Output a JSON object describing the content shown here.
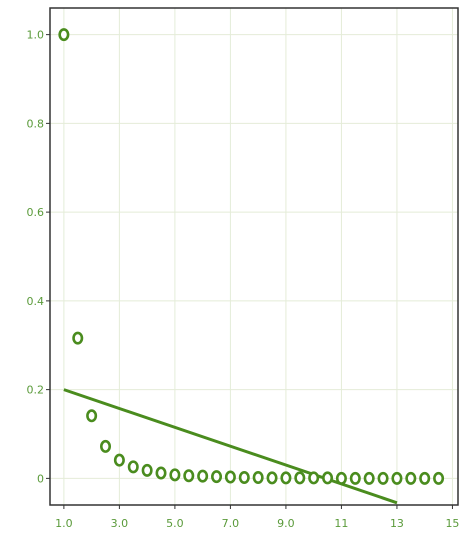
{
  "chart_data": {
    "type": "scatter",
    "title": "",
    "xlabel": "",
    "ylabel": "",
    "xlim": [
      0.5,
      15.2
    ],
    "ylim": [
      -0.06,
      1.06
    ],
    "grid": true,
    "x_ticks": [
      {
        "value": 1,
        "label": "1.0"
      },
      {
        "value": 3,
        "label": "3.0"
      },
      {
        "value": 5,
        "label": "5.0"
      },
      {
        "value": 7,
        "label": "7.0"
      },
      {
        "value": 9,
        "label": "9.0"
      },
      {
        "value": 11,
        "label": "11"
      },
      {
        "value": 13,
        "label": "13"
      },
      {
        "value": 15,
        "label": "15"
      }
    ],
    "y_ticks": [
      {
        "value": 0,
        "label": "0"
      },
      {
        "value": 0.2,
        "label": "0.2"
      },
      {
        "value": 0.4,
        "label": "0.4"
      },
      {
        "value": 0.6,
        "label": "0.6"
      },
      {
        "value": 0.8,
        "label": "0.8"
      },
      {
        "value": 1.0,
        "label": "1.0"
      }
    ],
    "series": [
      {
        "kind": "scatter",
        "marker": "open-circle",
        "points": [
          [
            1.0,
            1.0
          ],
          [
            1.5,
            0.316
          ],
          [
            2.0,
            0.141
          ],
          [
            2.5,
            0.072
          ],
          [
            3.0,
            0.041
          ],
          [
            3.5,
            0.026
          ],
          [
            4.0,
            0.018
          ],
          [
            4.5,
            0.012
          ],
          [
            5.0,
            0.008
          ],
          [
            5.5,
            0.006
          ],
          [
            6.0,
            0.005
          ],
          [
            6.5,
            0.004
          ],
          [
            7.0,
            0.003
          ],
          [
            7.5,
            0.002
          ],
          [
            8.0,
            0.002
          ],
          [
            8.5,
            0.001
          ],
          [
            9.0,
            0.001
          ],
          [
            9.5,
            0.001
          ],
          [
            10.0,
            0.001
          ],
          [
            10.5,
            0.001
          ],
          [
            11.0,
            0.0
          ],
          [
            11.5,
            0.0
          ],
          [
            12.0,
            0.0
          ],
          [
            12.5,
            0.0
          ],
          [
            13.0,
            0.0
          ],
          [
            13.5,
            0.0
          ],
          [
            14.0,
            0.0
          ],
          [
            14.5,
            0.0
          ]
        ]
      },
      {
        "kind": "line",
        "points": [
          [
            1.0,
            0.2
          ],
          [
            13.0,
            -0.055
          ]
        ]
      }
    ],
    "colors": {
      "marker": "#4a8c1e",
      "line": "#4a8c1e",
      "tick_text": "#5a9a3a",
      "grid": "#e4ecd8",
      "axis": "#333333"
    }
  }
}
